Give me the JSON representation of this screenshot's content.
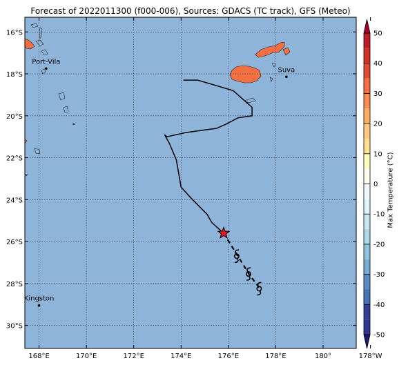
{
  "title": "Forecast of 2022011300 (f000-006), Sources: GDACS (TC track), GFS (Meteo)",
  "map": {
    "extent": {
      "lon_min": 167.4,
      "lon_max": 181.4,
      "lat_min": -31.1,
      "lat_max": -15.3
    },
    "ocean_color": "#8fb4d9",
    "land_color": "#f36f44",
    "x_ticks": [
      {
        "lon": 168,
        "label": "168°E"
      },
      {
        "lon": 170,
        "label": "170°E"
      },
      {
        "lon": 172,
        "label": "172°E"
      },
      {
        "lon": 174,
        "label": "174°E"
      },
      {
        "lon": 176,
        "label": "176°E"
      },
      {
        "lon": 178,
        "label": "178°E"
      },
      {
        "lon": 180,
        "label": "180°"
      },
      {
        "lon": 182,
        "label": "178°W"
      }
    ],
    "y_ticks": [
      {
        "lat": -16,
        "label": "16°S"
      },
      {
        "lat": -18,
        "label": "18°S"
      },
      {
        "lat": -20,
        "label": "20°S"
      },
      {
        "lat": -22,
        "label": "22°S"
      },
      {
        "lat": -24,
        "label": "24°S"
      },
      {
        "lat": -26,
        "label": "26°S"
      },
      {
        "lat": -28,
        "label": "28°S"
      },
      {
        "lat": -30,
        "label": "30°S"
      }
    ],
    "cities": [
      {
        "name": "Port-Vila",
        "lon": 168.3,
        "lat": -17.75
      },
      {
        "name": "Suva",
        "lon": 178.45,
        "lat": -18.14
      },
      {
        "name": "Kingston",
        "lon": 168.0,
        "lat": -29.05
      }
    ],
    "past_track": [
      [
        174.1,
        -18.3
      ],
      [
        174.7,
        -18.3
      ],
      [
        176.2,
        -18.8
      ],
      [
        177.0,
        -19.6
      ],
      [
        177.0,
        -20.0
      ],
      [
        176.4,
        -20.1
      ],
      [
        175.9,
        -20.4
      ],
      [
        175.5,
        -20.6
      ],
      [
        174.2,
        -20.8
      ],
      [
        173.4,
        -21.0
      ],
      [
        173.3,
        -20.9
      ],
      [
        173.5,
        -21.3
      ],
      [
        173.8,
        -22.1
      ],
      [
        174.0,
        -23.4
      ],
      [
        174.4,
        -23.9
      ],
      [
        175.1,
        -24.7
      ],
      [
        175.3,
        -25.1
      ],
      [
        175.8,
        -25.6
      ]
    ],
    "current_position": {
      "lon": 175.8,
      "lat": -25.6
    },
    "forecast_track": [
      [
        175.8,
        -25.6
      ],
      [
        176.4,
        -26.7
      ],
      [
        176.9,
        -27.6
      ],
      [
        177.3,
        -28.2
      ]
    ],
    "forecast_symbols": [
      {
        "lon": 176.35,
        "lat": -26.7
      },
      {
        "lon": 176.85,
        "lat": -27.55
      },
      {
        "lon": 177.3,
        "lat": -28.25
      }
    ]
  },
  "colorbar": {
    "label": "Max Temperature (°C)",
    "vmin": -50,
    "vmax": 50,
    "step": 5,
    "ticks": [
      50,
      40,
      30,
      20,
      10,
      0,
      -10,
      -20,
      -30,
      -40,
      -50
    ],
    "colors": [
      "#313695",
      "#353f99",
      "#4575b4",
      "#5a8bc0",
      "#74add1",
      "#8fc3dd",
      "#abd9e9",
      "#c8e6f1",
      "#e0f3f8",
      "#f0f9fb",
      "#fffef0",
      "#ffffbf",
      "#fee090",
      "#fdc97c",
      "#fdae61",
      "#f88d52",
      "#f46d43",
      "#e34a33",
      "#d73027",
      "#bd1a2a"
    ],
    "under_color": "#1e1a6b",
    "over_color": "#a50026"
  }
}
